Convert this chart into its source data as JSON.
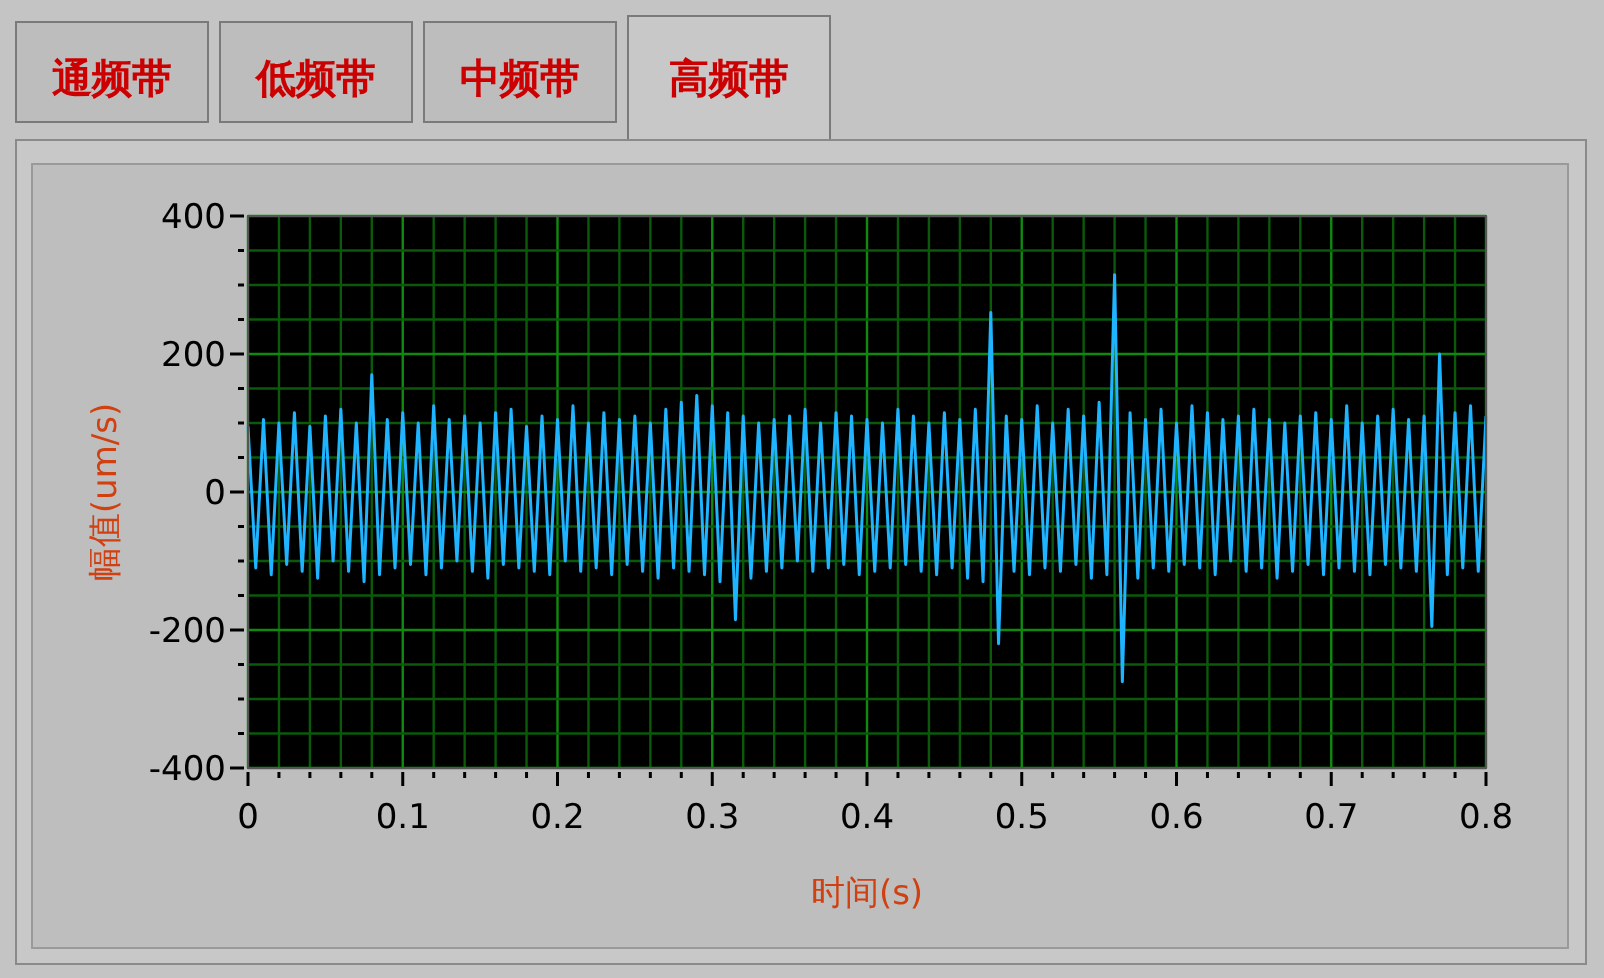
{
  "chart_data": {
    "type": "line",
    "xlabel": "时间(s)",
    "ylabel": "幅值(um/s)",
    "annotations": [
      "通频带",
      "低频带",
      "中频带",
      "高频带"
    ],
    "xlim": [
      0,
      0.8
    ],
    "xticks": [
      0,
      {
        "value": 0.02,
        "label": null
      },
      {
        "value": 0.04,
        "label": null
      },
      {
        "value": 0.06,
        "label": null
      },
      {
        "value": 0.08,
        "label": null
      },
      0.1,
      {
        "value": 0.12,
        "label": null
      },
      {
        "value": 0.14,
        "label": null
      },
      {
        "value": 0.16,
        "label": null
      },
      {
        "value": 0.18,
        "label": null
      },
      0.2,
      {
        "value": 0.22,
        "label": null
      },
      {
        "value": 0.24,
        "label": null
      },
      {
        "value": 0.26,
        "label": null
      },
      {
        "value": 0.28,
        "label": null
      },
      0.3,
      {
        "value": 0.32,
        "label": null
      },
      {
        "value": 0.34,
        "label": null
      },
      {
        "value": 0.36,
        "label": null
      },
      {
        "value": 0.38,
        "label": null
      },
      0.4,
      {
        "value": 0.42,
        "label": null
      },
      {
        "value": 0.44,
        "label": null
      },
      {
        "value": 0.46,
        "label": null
      },
      {
        "value": 0.48,
        "label": null
      },
      0.5,
      {
        "value": 0.52,
        "label": null
      },
      {
        "value": 0.54,
        "label": null
      },
      {
        "value": 0.56,
        "label": null
      },
      {
        "value": 0.58,
        "label": null
      },
      0.6,
      {
        "value": 0.62,
        "label": null
      },
      {
        "value": 0.64,
        "label": null
      },
      {
        "value": 0.66,
        "label": null
      },
      {
        "value": 0.68,
        "label": null
      },
      0.7,
      {
        "value": 0.72,
        "label": null
      },
      {
        "value": 0.74,
        "label": null
      },
      {
        "value": 0.76,
        "label": null
      },
      {
        "value": 0.78,
        "label": null
      },
      0.8
    ],
    "ylim": [
      -400,
      400
    ],
    "yticks": [
      -400,
      {
        "value": -350,
        "label": null
      },
      {
        "value": -300,
        "label": null
      },
      {
        "value": -250,
        "label": null
      },
      -200,
      {
        "value": -150,
        "label": null
      },
      {
        "value": -100,
        "label": null
      },
      {
        "value": -50,
        "label": null
      },
      0,
      {
        "value": 50,
        "label": null
      },
      {
        "value": 100,
        "label": null
      },
      {
        "value": 150,
        "label": null
      },
      200,
      {
        "value": 250,
        "label": null
      },
      {
        "value": 300,
        "label": null
      },
      {
        "value": 350,
        "label": null
      },
      400
    ],
    "grid": true,
    "marker": "none",
    "line_style": "solid",
    "x": [
      0,
      0.005,
      0.01,
      0.015,
      0.02,
      0.025,
      0.03,
      0.035,
      0.04,
      0.045,
      0.05,
      0.055,
      0.06,
      0.065,
      0.07,
      0.075,
      0.08,
      0.085,
      0.09,
      0.095,
      0.1,
      0.105,
      0.11,
      0.115,
      0.12,
      0.125,
      0.13,
      0.135,
      0.14,
      0.145,
      0.15,
      0.155,
      0.16,
      0.165,
      0.17,
      0.175,
      0.18,
      0.185,
      0.19,
      0.195,
      0.2,
      0.205,
      0.21,
      0.215,
      0.22,
      0.225,
      0.23,
      0.235,
      0.24,
      0.245,
      0.25,
      0.255,
      0.26,
      0.265,
      0.27,
      0.275,
      0.28,
      0.285,
      0.29,
      0.295,
      0.3,
      0.305,
      0.31,
      0.315,
      0.32,
      0.325,
      0.33,
      0.335,
      0.34,
      0.345,
      0.35,
      0.355,
      0.36,
      0.365,
      0.37,
      0.375,
      0.38,
      0.385,
      0.39,
      0.395,
      0.4,
      0.405,
      0.41,
      0.415,
      0.42,
      0.425,
      0.43,
      0.435,
      0.44,
      0.445,
      0.45,
      0.455,
      0.46,
      0.465,
      0.47,
      0.475,
      0.48,
      0.485,
      0.49,
      0.495,
      0.5,
      0.505,
      0.51,
      0.515,
      0.52,
      0.525,
      0.53,
      0.535,
      0.54,
      0.545,
      0.55,
      0.555,
      0.56,
      0.565,
      0.57,
      0.575,
      0.58,
      0.585,
      0.59,
      0.595,
      0.6,
      0.605,
      0.61,
      0.615,
      0.62,
      0.625,
      0.63,
      0.635,
      0.64,
      0.645,
      0.65,
      0.655,
      0.66,
      0.665,
      0.67,
      0.675,
      0.68,
      0.685,
      0.69,
      0.695,
      0.7,
      0.705,
      0.71,
      0.715,
      0.72,
      0.725,
      0.73,
      0.735,
      0.74,
      0.745,
      0.75,
      0.755,
      0.76,
      0.765,
      0.77,
      0.775,
      0.78,
      0.785,
      0.79,
      0.795,
      0.8
    ],
    "series": [
      {
        "color": "#1eb4ff",
        "values": [
          95,
          -110,
          105,
          -120,
          100,
          -105,
          115,
          -115,
          95,
          -125,
          110,
          -100,
          120,
          -115,
          100,
          -130,
          170,
          -120,
          105,
          -110,
          115,
          -105,
          100,
          -120,
          125,
          -110,
          105,
          -100,
          110,
          -115,
          100,
          -125,
          115,
          -105,
          120,
          -110,
          95,
          -115,
          110,
          -120,
          105,
          -100,
          125,
          -115,
          100,
          -110,
          115,
          -120,
          105,
          -105,
          110,
          -115,
          100,
          -125,
          120,
          -110,
          130,
          -115,
          140,
          -120,
          125,
          -130,
          115,
          -185,
          110,
          -125,
          100,
          -115,
          105,
          -110,
          110,
          -100,
          120,
          -115,
          100,
          -110,
          115,
          -105,
          110,
          -120,
          105,
          -115,
          100,
          -110,
          120,
          -105,
          110,
          -115,
          100,
          -120,
          115,
          -110,
          105,
          -125,
          120,
          -130,
          260,
          -220,
          110,
          -115,
          105,
          -120,
          125,
          -110,
          100,
          -115,
          120,
          -105,
          110,
          -125,
          130,
          -120,
          315,
          -275,
          115,
          -125,
          105,
          -110,
          120,
          -115,
          100,
          -105,
          125,
          -110,
          115,
          -120,
          105,
          -100,
          110,
          -115,
          120,
          -110,
          105,
          -125,
          100,
          -115,
          110,
          -105,
          115,
          -120,
          105,
          -110,
          125,
          -115,
          100,
          -120,
          110,
          -105,
          120,
          -110,
          105,
          -115,
          110,
          -195,
          200,
          -120,
          115,
          -110,
          125,
          -115,
          110
        ]
      }
    ]
  }
}
